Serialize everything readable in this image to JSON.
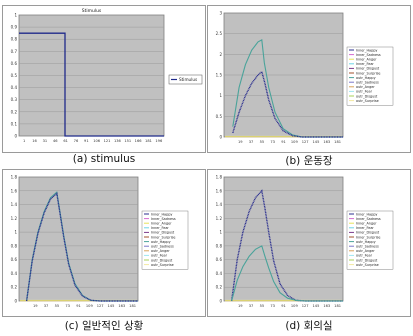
{
  "colors": {
    "plot_bg": "#c0c0c0",
    "frame": "#7f7f7f",
    "grid": "#9a9a9a",
    "stimulus": "#1f2a8a",
    "in_happy": "#2b2f8f",
    "out_happy": "#4aa39a",
    "flat_lines": [
      "#e7e35a",
      "#d56bd0",
      "#6dd5e6",
      "#a8d15a",
      "#d9a35a",
      "#7b78c9",
      "#f0b8e2",
      "#9fe7f0",
      "#f3e9a0"
    ]
  },
  "legend_entries": [
    "Inner_Happy",
    "Inner_Sadness",
    "Inner_Anger",
    "Inner_Fear",
    "Inner_Disgust",
    "Inner_Surprise",
    "outr_Happy",
    "outr_Sadness",
    "outr_Anger",
    "outr_Fear",
    "outr_Disgust",
    "outr_Surprise"
  ],
  "chart_data": [
    {
      "type": "line",
      "title": "Stimulus",
      "caption": "(a) stimulus",
      "xlim": [
        1,
        190
      ],
      "ylim": [
        0,
        1
      ],
      "yticks": [
        "0",
        "0.1",
        "0.2",
        "0.3",
        "0.4",
        "0.5",
        "0.6",
        "0.7",
        "0.8",
        "0.9",
        "1"
      ],
      "xticks": [
        "1",
        "16",
        "31",
        "46",
        "61",
        "76",
        "91",
        "106",
        "121",
        "136",
        "151",
        "166",
        "181",
        "196"
      ],
      "grid": true,
      "legend": "right",
      "series": [
        {
          "name": "Stimulus",
          "points": [
            [
              1,
              0.85
            ],
            [
              61,
              0.85
            ],
            [
              61,
              0
            ],
            [
              190,
              0
            ]
          ]
        }
      ]
    },
    {
      "type": "line",
      "caption": "(b) 운동장",
      "xlim": [
        1,
        190
      ],
      "ylim": [
        0,
        3
      ],
      "yticks": [
        "0",
        "0.5",
        "1",
        "1.5",
        "2",
        "2.5",
        "3"
      ],
      "xticks": [
        "",
        "19",
        "37",
        "55",
        "73",
        "91",
        "109",
        "127",
        "145",
        "163",
        "181"
      ],
      "grid": true,
      "legend": "right",
      "series": [
        {
          "name": "outr_Happy",
          "points": [
            [
              15,
              0.25
            ],
            [
              25,
              1.2
            ],
            [
              35,
              1.75
            ],
            [
              45,
              2.1
            ],
            [
              55,
              2.3
            ],
            [
              61,
              2.35
            ],
            [
              65,
              1.8
            ],
            [
              72,
              1.2
            ],
            [
              82,
              0.6
            ],
            [
              95,
              0.2
            ],
            [
              110,
              0.05
            ],
            [
              125,
              0
            ],
            [
              190,
              0
            ]
          ]
        },
        {
          "name": "Inner_Happy",
          "points": [
            [
              15,
              0.1
            ],
            [
              25,
              0.6
            ],
            [
              35,
              1.0
            ],
            [
              45,
              1.3
            ],
            [
              55,
              1.5
            ],
            [
              61,
              1.58
            ],
            [
              66,
              1.3
            ],
            [
              72,
              0.9
            ],
            [
              82,
              0.45
            ],
            [
              95,
              0.15
            ],
            [
              110,
              0.03
            ],
            [
              125,
              0
            ],
            [
              190,
              0
            ]
          ]
        }
      ]
    },
    {
      "type": "line",
      "caption": "(c) 일반적인 상황",
      "xlim": [
        1,
        190
      ],
      "ylim": [
        0,
        1.8
      ],
      "yticks": [
        "0",
        "0.2",
        "0.4",
        "0.6",
        "0.8",
        "1",
        "1.2",
        "1.4",
        "1.6",
        "1.8"
      ],
      "xticks": [
        "",
        "19",
        "37",
        "55",
        "73",
        "91",
        "109",
        "127",
        "145",
        "163",
        "181"
      ],
      "grid": true,
      "legend": "right",
      "series": [
        {
          "name": "outr_Happy",
          "points": [
            [
              13,
              0
            ],
            [
              22,
              0.6
            ],
            [
              31,
              1.0
            ],
            [
              41,
              1.3
            ],
            [
              51,
              1.5
            ],
            [
              61,
              1.58
            ],
            [
              66,
              1.3
            ],
            [
              72,
              0.95
            ],
            [
              80,
              0.55
            ],
            [
              90,
              0.25
            ],
            [
              102,
              0.08
            ],
            [
              115,
              0.01
            ],
            [
              130,
              0
            ],
            [
              190,
              0
            ]
          ]
        },
        {
          "name": "Inner_Happy",
          "points": [
            [
              13,
              0
            ],
            [
              22,
              0.58
            ],
            [
              31,
              0.98
            ],
            [
              41,
              1.28
            ],
            [
              51,
              1.48
            ],
            [
              61,
              1.56
            ],
            [
              66,
              1.28
            ],
            [
              72,
              0.93
            ],
            [
              80,
              0.53
            ],
            [
              90,
              0.23
            ],
            [
              102,
              0.07
            ],
            [
              115,
              0.01
            ],
            [
              130,
              0
            ],
            [
              190,
              0
            ]
          ]
        }
      ]
    },
    {
      "type": "line",
      "caption": "(d) 회의실",
      "xlim": [
        1,
        190
      ],
      "ylim": [
        0,
        1.8
      ],
      "yticks": [
        "0",
        "0.2",
        "0.4",
        "0.6",
        "0.8",
        "1",
        "1.2",
        "1.4",
        "1.6",
        "1.8"
      ],
      "xticks": [
        "",
        "19",
        "37",
        "55",
        "73",
        "91",
        "109",
        "127",
        "145",
        "163",
        "181"
      ],
      "grid": true,
      "legend": "right",
      "series": [
        {
          "name": "Inner_Happy",
          "points": [
            [
              13,
              0
            ],
            [
              22,
              0.6
            ],
            [
              31,
              1.0
            ],
            [
              41,
              1.3
            ],
            [
              51,
              1.5
            ],
            [
              61,
              1.6
            ],
            [
              66,
              1.35
            ],
            [
              72,
              1.0
            ],
            [
              80,
              0.58
            ],
            [
              90,
              0.25
            ],
            [
              102,
              0.08
            ],
            [
              115,
              0.01
            ],
            [
              130,
              0
            ],
            [
              190,
              0
            ]
          ]
        },
        {
          "name": "outr_Happy",
          "points": [
            [
              13,
              0
            ],
            [
              22,
              0.3
            ],
            [
              31,
              0.5
            ],
            [
              41,
              0.65
            ],
            [
              51,
              0.75
            ],
            [
              61,
              0.8
            ],
            [
              66,
              0.65
            ],
            [
              72,
              0.48
            ],
            [
              80,
              0.28
            ],
            [
              90,
              0.12
            ],
            [
              102,
              0.04
            ],
            [
              115,
              0.01
            ],
            [
              130,
              0
            ],
            [
              190,
              0
            ]
          ]
        }
      ]
    }
  ]
}
